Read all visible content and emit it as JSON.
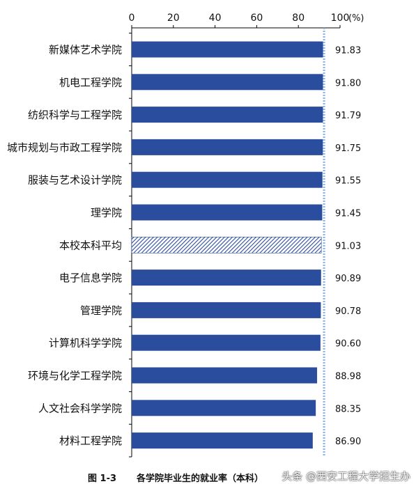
{
  "chart_data": {
    "type": "bar",
    "orientation": "horizontal",
    "categories": [
      "新媒体艺术学院",
      "机电工程学院",
      "纺织科学与工程学院",
      "城市规划与市政工程学院",
      "服装与艺术设计学院",
      "理学院",
      "本校本科平均",
      "电子信息学院",
      "管理学院",
      "计算机科学学院",
      "环境与化学工程学院",
      "人文社会科学学院",
      "材料工程学院"
    ],
    "values": [
      91.83,
      91.8,
      91.79,
      91.75,
      91.55,
      91.45,
      91.03,
      90.89,
      90.78,
      90.6,
      88.98,
      88.35,
      86.9
    ],
    "value_labels": [
      "91.83",
      "91.80",
      "91.79",
      "91.75",
      "91.55",
      "91.45",
      "91.03",
      "90.89",
      "90.78",
      "90.60",
      "88.98",
      "88.35",
      "86.90"
    ],
    "highlight_category": "本校本科平均",
    "reference_line": 91.83,
    "xlim": [
      0,
      100
    ],
    "xticks": [
      "0",
      "20",
      "40",
      "60",
      "80",
      "100"
    ],
    "xunit": "(%)",
    "xaxis_position": "top",
    "grid": false,
    "bar_color": "#2a4d9e",
    "highlight_color": "#2a4d9e",
    "reference_line_color": "#8ab4e0"
  },
  "caption": {
    "figure_number": "图 1-3",
    "title": "各学院毕业生的就业率（本科）"
  },
  "watermark": "头条 @西安工程大学招生办"
}
